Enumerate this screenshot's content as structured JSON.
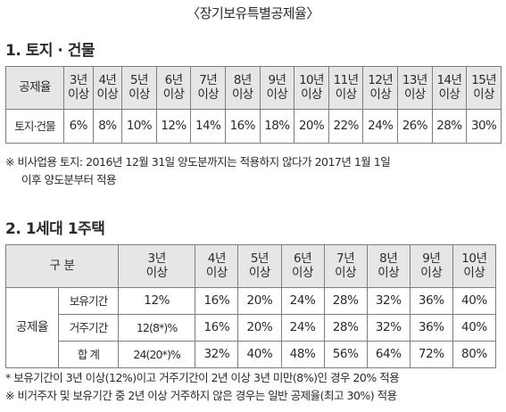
{
  "title": "〈장기보유특별공제율〉",
  "section1": {
    "heading": "1. 토지 · 건물",
    "table": {
      "corner": "공제율",
      "years": [
        {
          "y": "3년",
          "s": "이상"
        },
        {
          "y": "4년",
          "s": "이상"
        },
        {
          "y": "5년",
          "s": "이상"
        },
        {
          "y": "6년",
          "s": "이상"
        },
        {
          "y": "7년",
          "s": "이상"
        },
        {
          "y": "8년",
          "s": "이상"
        },
        {
          "y": "9년",
          "s": "이상"
        },
        {
          "y": "10년",
          "s": "이상"
        },
        {
          "y": "11년",
          "s": "이상"
        },
        {
          "y": "12년",
          "s": "이상"
        },
        {
          "y": "13년",
          "s": "이상"
        },
        {
          "y": "14년",
          "s": "이상"
        },
        {
          "y": "15년",
          "s": "이상"
        }
      ],
      "row_label": "토지·건물",
      "values": [
        "6%",
        "8%",
        "10%",
        "12%",
        "14%",
        "16%",
        "18%",
        "20%",
        "22%",
        "24%",
        "26%",
        "28%",
        "30%"
      ]
    },
    "note_line1": "※ 비사업용 토지: 2016년 12월 31일 양도분까지는 적용하지 않다가 2017년 1월 1일",
    "note_line2": "이후 양도분부터 적용"
  },
  "section2": {
    "heading": "2. 1세대 1주택",
    "table": {
      "corner": "구 분",
      "years": [
        {
          "y": "3년",
          "s": "이상"
        },
        {
          "y": "4년",
          "s": "이상"
        },
        {
          "y": "5년",
          "s": "이상"
        },
        {
          "y": "6년",
          "s": "이상"
        },
        {
          "y": "7년",
          "s": "이상"
        },
        {
          "y": "8년",
          "s": "이상"
        },
        {
          "y": "9년",
          "s": "이상"
        },
        {
          "y": "10년",
          "s": "이상"
        }
      ],
      "group_label": "공제율",
      "rows": [
        {
          "label": "보유기간",
          "values": [
            "12%",
            "16%",
            "20%",
            "24%",
            "28%",
            "32%",
            "36%",
            "40%"
          ]
        },
        {
          "label": "거주기간",
          "values": [
            "12(8*)%",
            "16%",
            "20%",
            "24%",
            "28%",
            "32%",
            "36%",
            "40%"
          ]
        },
        {
          "label": "합 계",
          "values": [
            "24(20*)%",
            "32%",
            "40%",
            "48%",
            "56%",
            "64%",
            "72%",
            "80%"
          ]
        }
      ]
    },
    "note1": "* 보유기간이 3년 이상(12%)이고 거주기간이 2년 이상 3년 미만(8%)인 경우 20% 적용",
    "note2": "※ 비거주자 및 보유기간 중 2년 이상 거주하지 않은 경우는 일반 공제율(최고 30%) 적용"
  }
}
